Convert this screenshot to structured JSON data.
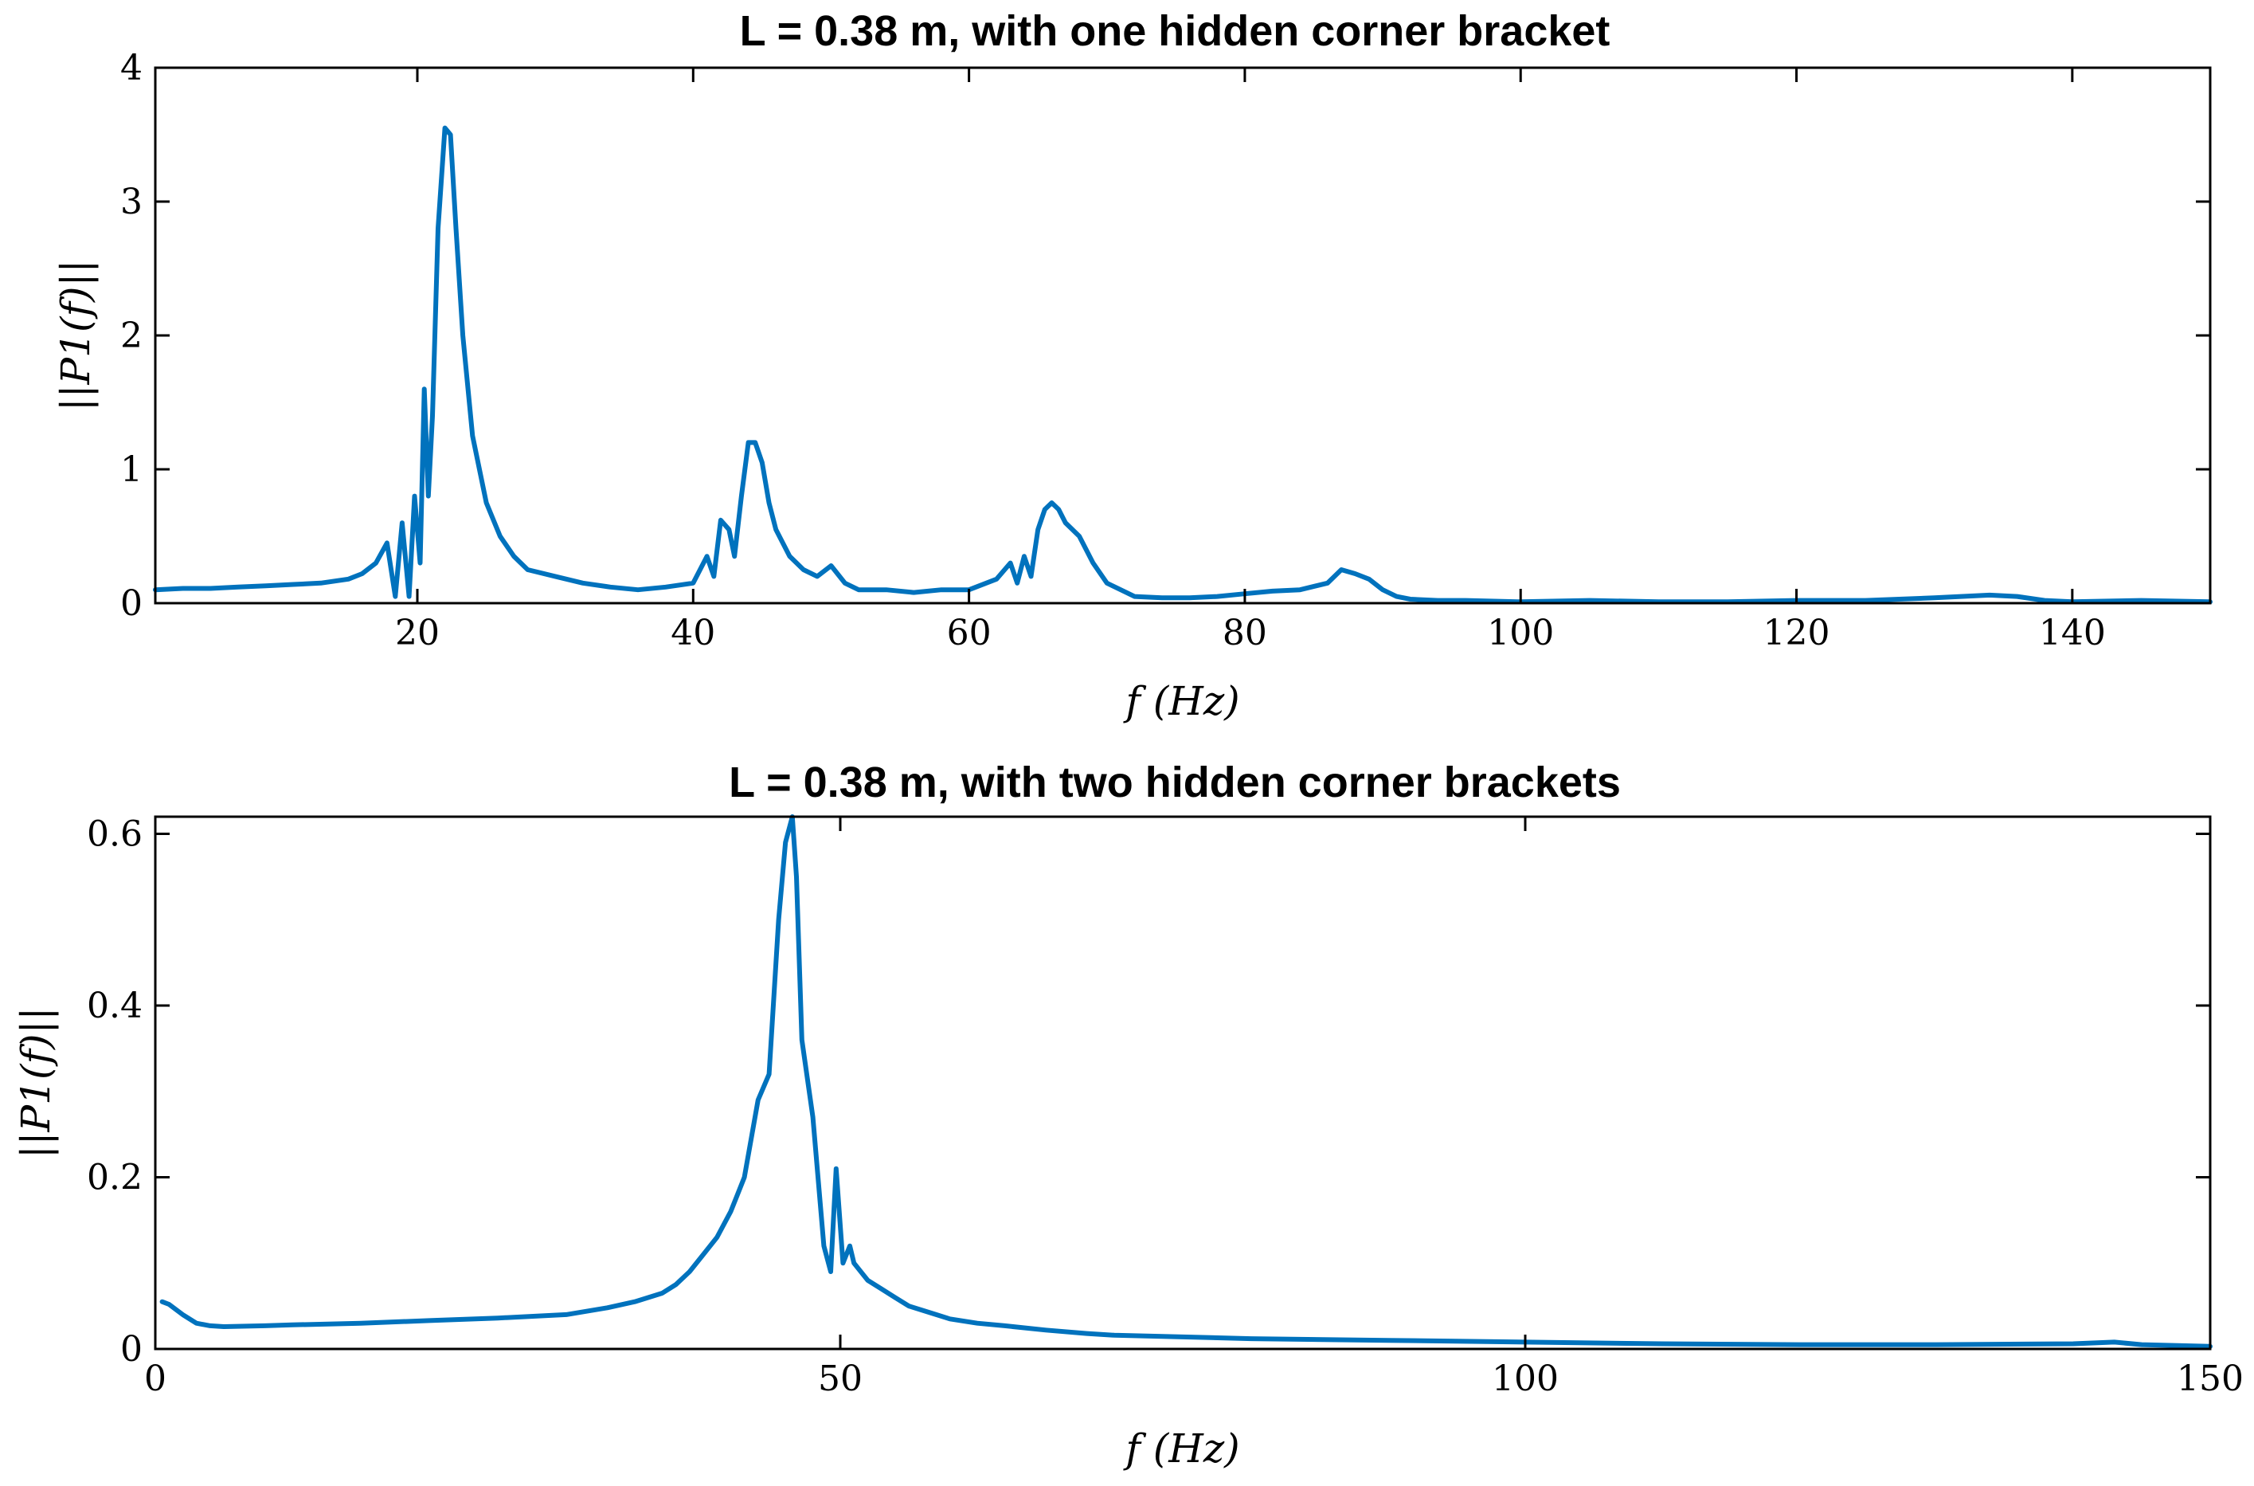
{
  "chart_data": [
    {
      "type": "line",
      "title": "L = 0.38 m, with one hidden corner bracket",
      "xlabel": "f (Hz)",
      "ylabel": "||P1(f)||",
      "xlim": [
        1,
        150
      ],
      "ylim": [
        0,
        4
      ],
      "xticks": [
        20,
        40,
        60,
        80,
        100,
        120,
        140
      ],
      "yticks": [
        0,
        1,
        2,
        3,
        4
      ],
      "grid": false,
      "color": "#0072BD",
      "series": [
        {
          "x": [
            1,
            3,
            5,
            7,
            9,
            11,
            13,
            15,
            16,
            17,
            17.8,
            18.4,
            18.9,
            19.4,
            19.8,
            20.2,
            20.5,
            20.8,
            21.1,
            21.5,
            22,
            22.4,
            22.8,
            23.3,
            24,
            25,
            26,
            27,
            28,
            30,
            32,
            34,
            36,
            38,
            40,
            41,
            41.5,
            42,
            42.6,
            43,
            43.5,
            44,
            44.5,
            45,
            45.5,
            46,
            47,
            48,
            49,
            50,
            51,
            52,
            54,
            56,
            58,
            60,
            62,
            63,
            63.5,
            64,
            64.5,
            65,
            65.5,
            66,
            66.5,
            67,
            68,
            69,
            70,
            71,
            72,
            74,
            76,
            78,
            80,
            82,
            84,
            86,
            87,
            88,
            89,
            90,
            91,
            92,
            94,
            96,
            100,
            105,
            110,
            115,
            120,
            125,
            130,
            134,
            136,
            138,
            140,
            145,
            150
          ],
          "y": [
            0.1,
            0.11,
            0.11,
            0.12,
            0.13,
            0.14,
            0.15,
            0.18,
            0.22,
            0.3,
            0.45,
            0.05,
            0.6,
            0.05,
            0.8,
            0.3,
            1.6,
            0.8,
            1.4,
            2.8,
            3.55,
            3.5,
            2.8,
            2.0,
            1.25,
            0.75,
            0.5,
            0.35,
            0.25,
            0.2,
            0.15,
            0.12,
            0.1,
            0.12,
            0.15,
            0.35,
            0.2,
            0.62,
            0.55,
            0.35,
            0.8,
            1.2,
            1.2,
            1.05,
            0.75,
            0.55,
            0.35,
            0.25,
            0.2,
            0.28,
            0.15,
            0.1,
            0.1,
            0.08,
            0.1,
            0.1,
            0.18,
            0.3,
            0.15,
            0.35,
            0.2,
            0.55,
            0.7,
            0.75,
            0.7,
            0.6,
            0.5,
            0.3,
            0.15,
            0.1,
            0.05,
            0.04,
            0.04,
            0.05,
            0.07,
            0.09,
            0.1,
            0.15,
            0.25,
            0.22,
            0.18,
            0.1,
            0.05,
            0.03,
            0.02,
            0.02,
            0.01,
            0.02,
            0.01,
            0.01,
            0.02,
            0.02,
            0.04,
            0.06,
            0.05,
            0.02,
            0.01,
            0.02,
            0.01
          ]
        }
      ]
    },
    {
      "type": "line",
      "title": "L = 0.38 m, with two hidden corner brackets",
      "xlabel": "f (Hz)",
      "ylabel": "||P1(f)||",
      "xlim": [
        0,
        150
      ],
      "ylim": [
        0,
        0.62
      ],
      "xticks": [
        0,
        50,
        100,
        150
      ],
      "yticks": [
        0,
        0.2,
        0.4,
        0.6
      ],
      "grid": false,
      "color": "#0072BD",
      "series": [
        {
          "x": [
            0.5,
            1,
            2,
            3,
            4,
            5,
            8,
            10,
            15,
            20,
            25,
            30,
            33,
            35,
            37,
            38,
            39,
            40,
            41,
            42,
            42.5,
            43,
            44,
            44.8,
            45.5,
            46,
            46.5,
            46.8,
            47.2,
            48,
            48.8,
            49.3,
            49.7,
            50.2,
            50.7,
            51,
            51.5,
            52,
            53,
            54,
            55,
            56,
            57,
            58,
            60,
            62,
            65,
            68,
            70,
            75,
            80,
            90,
            100,
            110,
            120,
            130,
            140,
            143,
            145,
            150
          ],
          "y": [
            0.055,
            0.052,
            0.04,
            0.03,
            0.027,
            0.026,
            0.027,
            0.028,
            0.03,
            0.033,
            0.036,
            0.04,
            0.048,
            0.055,
            0.065,
            0.075,
            0.09,
            0.11,
            0.13,
            0.16,
            0.18,
            0.2,
            0.29,
            0.32,
            0.5,
            0.59,
            0.62,
            0.55,
            0.36,
            0.27,
            0.12,
            0.09,
            0.21,
            0.1,
            0.12,
            0.1,
            0.09,
            0.08,
            0.07,
            0.06,
            0.05,
            0.045,
            0.04,
            0.035,
            0.03,
            0.027,
            0.022,
            0.018,
            0.016,
            0.014,
            0.012,
            0.01,
            0.008,
            0.006,
            0.005,
            0.005,
            0.006,
            0.008,
            0.005,
            0.003
          ]
        }
      ]
    }
  ]
}
